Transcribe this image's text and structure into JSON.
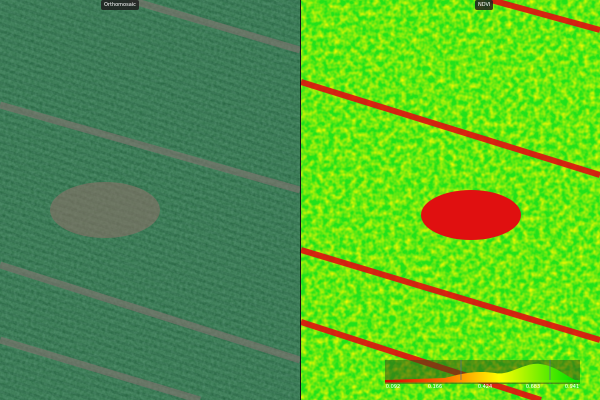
{
  "panes": {
    "left": {
      "label": "Orthomosaic"
    },
    "right": {
      "label": "NDVI"
    }
  },
  "legend": {
    "ticks": [
      "0.092",
      "0.166",
      "0.424",
      "0.683",
      "0.941"
    ],
    "colors": {
      "low": "#d40000",
      "mid": "#ffff00",
      "high": "#00e000"
    }
  }
}
